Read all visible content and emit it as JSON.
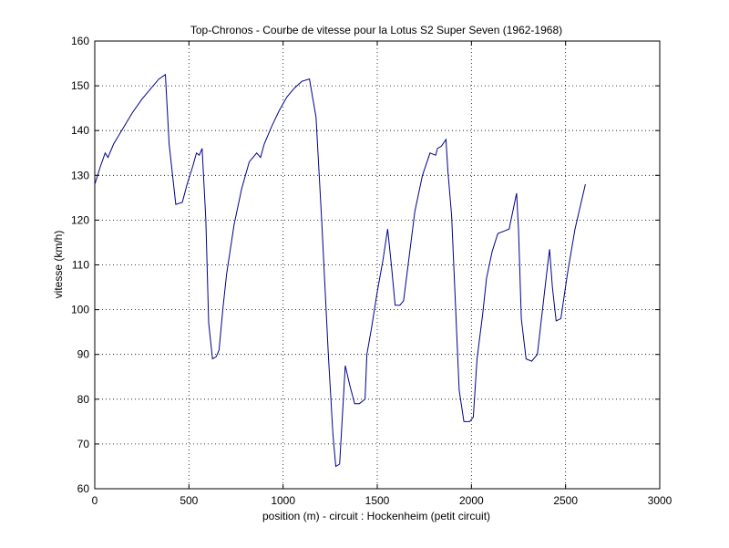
{
  "chart_data": {
    "type": "line",
    "title": "Top-Chronos - Courbe de vitesse pour la Lotus S2 Super Seven (1962-1968)",
    "xlabel": "position (m) - circuit : Hockenheim (petit circuit)",
    "ylabel": "vitesse (km/h)",
    "xlim": [
      0,
      3000
    ],
    "ylim": [
      60,
      160
    ],
    "xticks": [
      0,
      500,
      1000,
      1500,
      2000,
      2500,
      3000
    ],
    "yticks": [
      60,
      70,
      80,
      90,
      100,
      110,
      120,
      130,
      140,
      150,
      160
    ],
    "grid": true,
    "series_color": "#00008b",
    "series": [
      {
        "x": [
          0,
          30,
          55,
          70,
          100,
          150,
          200,
          250,
          300,
          340,
          375,
          395,
          430,
          465,
          490,
          520,
          540,
          555,
          570,
          590,
          605,
          625,
          645,
          660,
          680,
          700,
          740,
          780,
          820,
          860,
          880,
          900,
          940,
          980,
          1020,
          1060,
          1100,
          1140,
          1175,
          1205,
          1240,
          1265,
          1280,
          1300,
          1330,
          1355,
          1380,
          1405,
          1435,
          1445,
          1470,
          1500,
          1530,
          1555,
          1575,
          1595,
          1620,
          1640,
          1670,
          1700,
          1740,
          1780,
          1810,
          1820,
          1840,
          1865,
          1875,
          1895,
          1935,
          1960,
          1990,
          2010,
          2030,
          2060,
          2080,
          2110,
          2140,
          2170,
          2200,
          2220,
          2240,
          2250,
          2265,
          2290,
          2320,
          2350,
          2380,
          2405,
          2415,
          2430,
          2450,
          2475,
          2510,
          2550,
          2605
        ],
        "y": [
          128,
          132,
          135,
          134,
          137,
          140.5,
          144,
          147,
          149.5,
          151.5,
          152.5,
          137,
          123.5,
          124,
          128,
          132,
          135,
          134.5,
          136,
          120,
          97,
          89,
          89.5,
          91,
          100,
          108,
          119,
          127,
          133,
          135,
          134,
          137,
          141,
          144.5,
          147.5,
          149.5,
          151,
          151.5,
          143,
          120,
          90,
          72,
          65,
          65.5,
          87.5,
          83,
          79,
          79,
          80,
          90,
          96,
          104,
          111,
          118,
          110,
          101,
          101,
          102,
          112,
          122,
          130,
          135,
          134.5,
          136,
          136.5,
          138,
          131,
          121,
          82,
          75,
          75,
          76,
          89,
          99,
          107,
          113,
          117,
          117.5,
          118,
          122,
          126,
          118,
          98,
          89,
          88.5,
          90,
          101,
          110,
          113.5,
          105,
          97.5,
          98,
          108,
          118,
          128
        ]
      }
    ]
  }
}
